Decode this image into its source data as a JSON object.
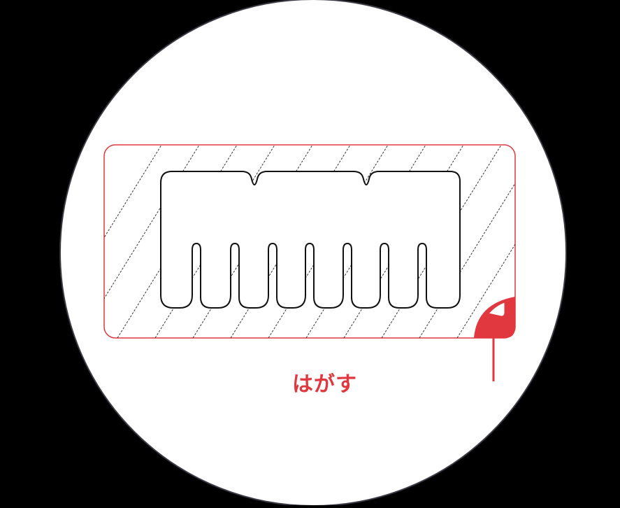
{
  "callout": {
    "label": "はがす"
  },
  "colors": {
    "background": "#000000",
    "circle_fill": "#ffffff",
    "circle_stroke": "#3a3a44",
    "liner_stroke": "#e0383e",
    "hatch": "#222222",
    "product_outline": "#111111",
    "accent": "#e0383e"
  },
  "icons": {
    "peel_tab": "peel-corner-icon"
  }
}
